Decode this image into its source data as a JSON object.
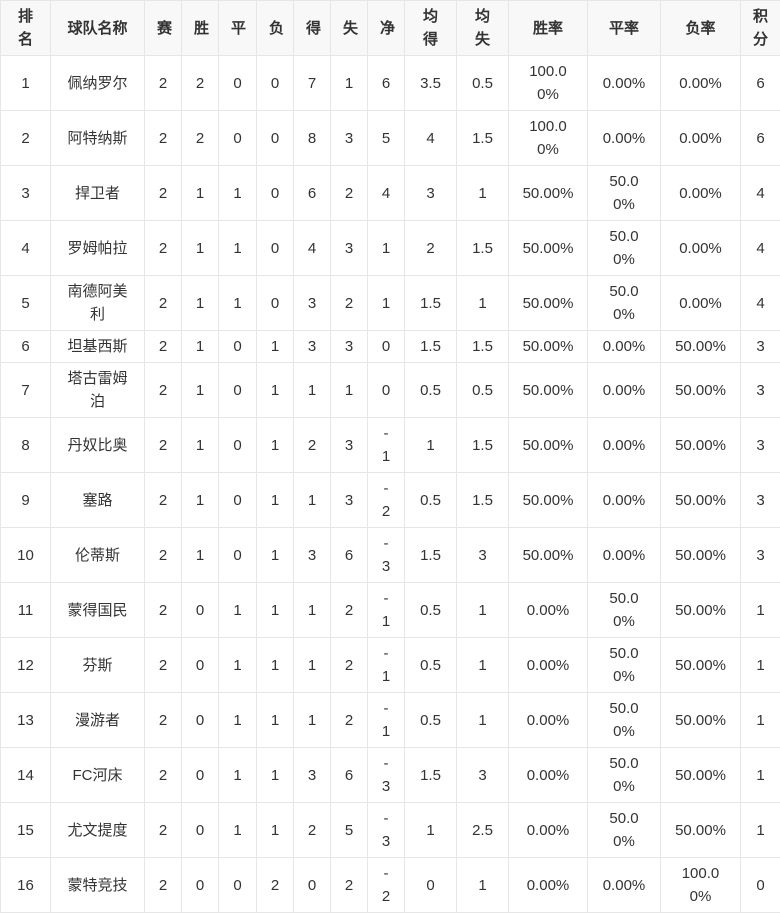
{
  "headers": [
    "排名",
    "球队名称",
    "赛",
    "胜",
    "平",
    "负",
    "得",
    "失",
    "净",
    "均得",
    "均失",
    "胜率",
    "平率",
    "负率",
    "积分"
  ],
  "rows": [
    [
      "1",
      "佩纳罗尔",
      "2",
      "2",
      "0",
      "0",
      "7",
      "1",
      "6",
      "3.5",
      "0.5",
      "100.00%",
      "0.00%",
      "0.00%",
      "6"
    ],
    [
      "2",
      "阿特纳斯",
      "2",
      "2",
      "0",
      "0",
      "8",
      "3",
      "5",
      "4",
      "1.5",
      "100.00%",
      "0.00%",
      "0.00%",
      "6"
    ],
    [
      "3",
      "捍卫者",
      "2",
      "1",
      "1",
      "0",
      "6",
      "2",
      "4",
      "3",
      "1",
      "50.00%",
      "50.00%",
      "0.00%",
      "4"
    ],
    [
      "4",
      "罗姆帕拉",
      "2",
      "1",
      "1",
      "0",
      "4",
      "3",
      "1",
      "2",
      "1.5",
      "50.00%",
      "50.00%",
      "0.00%",
      "4"
    ],
    [
      "5",
      "南德阿美利",
      "2",
      "1",
      "1",
      "0",
      "3",
      "2",
      "1",
      "1.5",
      "1",
      "50.00%",
      "50.00%",
      "0.00%",
      "4"
    ],
    [
      "6",
      "坦基西斯",
      "2",
      "1",
      "0",
      "1",
      "3",
      "3",
      "0",
      "1.5",
      "1.5",
      "50.00%",
      "0.00%",
      "50.00%",
      "3"
    ],
    [
      "7",
      "塔古雷姆泊",
      "2",
      "1",
      "0",
      "1",
      "1",
      "1",
      "0",
      "0.5",
      "0.5",
      "50.00%",
      "0.00%",
      "50.00%",
      "3"
    ],
    [
      "8",
      "丹奴比奥",
      "2",
      "1",
      "0",
      "1",
      "2",
      "3",
      "-1",
      "1",
      "1.5",
      "50.00%",
      "0.00%",
      "50.00%",
      "3"
    ],
    [
      "9",
      "塞路",
      "2",
      "1",
      "0",
      "1",
      "1",
      "3",
      "-2",
      "0.5",
      "1.5",
      "50.00%",
      "0.00%",
      "50.00%",
      "3"
    ],
    [
      "10",
      "伦蒂斯",
      "2",
      "1",
      "0",
      "1",
      "3",
      "6",
      "-3",
      "1.5",
      "3",
      "50.00%",
      "0.00%",
      "50.00%",
      "3"
    ],
    [
      "11",
      "蒙得国民",
      "2",
      "0",
      "1",
      "1",
      "1",
      "2",
      "-1",
      "0.5",
      "1",
      "0.00%",
      "50.00%",
      "50.00%",
      "1"
    ],
    [
      "12",
      "芬斯",
      "2",
      "0",
      "1",
      "1",
      "1",
      "2",
      "-1",
      "0.5",
      "1",
      "0.00%",
      "50.00%",
      "50.00%",
      "1"
    ],
    [
      "13",
      "漫游者",
      "2",
      "0",
      "1",
      "1",
      "1",
      "2",
      "-1",
      "0.5",
      "1",
      "0.00%",
      "50.00%",
      "50.00%",
      "1"
    ],
    [
      "14",
      "FC河床",
      "2",
      "0",
      "1",
      "1",
      "3",
      "6",
      "-3",
      "1.5",
      "3",
      "0.00%",
      "50.00%",
      "50.00%",
      "1"
    ],
    [
      "15",
      "尤文提度",
      "2",
      "0",
      "1",
      "1",
      "2",
      "5",
      "-3",
      "1",
      "2.5",
      "0.00%",
      "50.00%",
      "50.00%",
      "1"
    ],
    [
      "16",
      "蒙特竞技",
      "2",
      "0",
      "0",
      "2",
      "0",
      "2",
      "-2",
      "0",
      "1",
      "0.00%",
      "0.00%",
      "100.00%",
      "0"
    ]
  ]
}
